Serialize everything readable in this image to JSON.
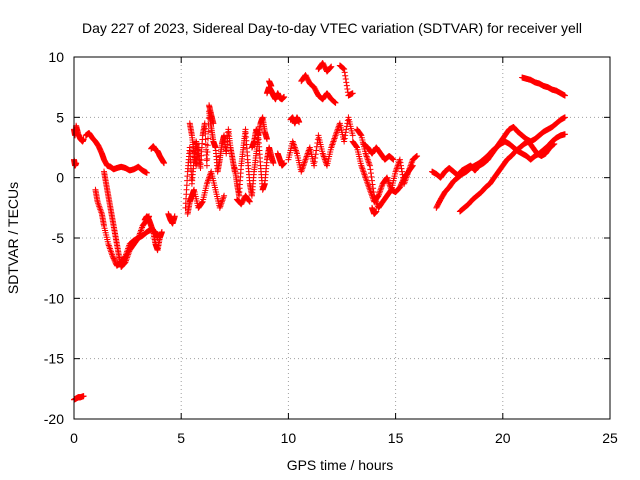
{
  "chart_data": {
    "type": "scatter",
    "title": "Day 227 of 2023, Sidereal Day-to-day VTEC variation (SDTVAR) for receiver yell",
    "xlabel": "GPS time / hours",
    "ylabel": "SDTVAR / TECUs",
    "xlim": [
      0,
      25
    ],
    "ylim": [
      -20,
      10
    ],
    "xticks": [
      0,
      5,
      10,
      15,
      20,
      25
    ],
    "yticks": [
      -20,
      -15,
      -10,
      -5,
      0,
      5,
      10
    ],
    "grid": true,
    "marker": "+",
    "color": "#ff0000",
    "series": [
      {
        "name": "SDTVAR",
        "segments": [
          {
            "x": [
              0.0,
              0.1,
              0.2,
              0.3,
              0.45
            ],
            "y": [
              -18.4,
              -18.3,
              -18.2,
              -18.2,
              -18.1
            ]
          },
          {
            "x": [
              0.0,
              0.05,
              0.1
            ],
            "y": [
              1.5,
              1.0,
              1.2
            ]
          },
          {
            "x": [
              0.0,
              0.05,
              0.1,
              0.2,
              0.3,
              0.4,
              0.45
            ],
            "y": [
              4.0,
              3.5,
              4.3,
              3.6,
              3.2,
              3.0,
              3.2
            ]
          },
          {
            "x": [
              0.55,
              0.7,
              0.85,
              1.0,
              1.15,
              1.3,
              1.4,
              1.55,
              1.7,
              1.85,
              2.0,
              2.2,
              2.4,
              2.6,
              2.8,
              3.0,
              3.2,
              3.4
            ],
            "y": [
              3.5,
              3.7,
              3.3,
              3.0,
              2.6,
              2.0,
              1.5,
              1.0,
              0.9,
              0.7,
              0.8,
              0.9,
              0.8,
              0.6,
              0.7,
              0.9,
              0.6,
              0.4
            ]
          },
          {
            "x": [
              1.0,
              1.1,
              1.3,
              1.4,
              1.6,
              1.8,
              2.0,
              2.2,
              2.4,
              2.6,
              2.8,
              3.0,
              3.2,
              3.4,
              3.6,
              3.8,
              3.9
            ],
            "y": [
              -1.0,
              -2.0,
              -3.0,
              -4.0,
              -5.5,
              -6.5,
              -7.3,
              -7.0,
              -6.5,
              -5.5,
              -5.2,
              -5.0,
              -4.8,
              -4.5,
              -4.3,
              -4.5,
              -5.0
            ]
          },
          {
            "x": [
              1.4,
              1.5,
              1.6,
              1.7,
              1.8,
              1.9,
              2.0,
              2.1,
              2.2,
              2.4,
              2.6,
              2.8,
              3.0,
              3.2,
              3.4,
              3.5
            ],
            "y": [
              0.5,
              -0.5,
              -1.5,
              -2.5,
              -3.5,
              -4.5,
              -5.5,
              -6.5,
              -7.4,
              -7.0,
              -6.0,
              -5.5,
              -5.0,
              -4.0,
              -3.5,
              -3.2
            ]
          },
          {
            "x": [
              3.3,
              3.4,
              3.5,
              3.6,
              3.7,
              3.8,
              3.9,
              4.0,
              4.1
            ],
            "y": [
              -3.5,
              -3.2,
              -3.5,
              -4.0,
              -4.5,
              -5.5,
              -6.0,
              -5.0,
              -4.5
            ]
          },
          {
            "x": [
              3.6,
              3.7,
              3.8,
              3.9,
              4.0,
              4.1,
              4.2
            ],
            "y": [
              2.4,
              2.6,
              2.3,
              2.2,
              1.8,
              1.5,
              1.2
            ]
          },
          {
            "x": [
              4.4,
              4.5,
              4.6,
              4.7
            ],
            "y": [
              -3.0,
              -3.5,
              -3.8,
              -3.2
            ]
          },
          {
            "x": [
              5.2,
              5.3,
              5.4,
              5.5,
              5.6,
              5.7,
              5.8,
              5.9,
              6.0,
              6.1,
              6.2,
              6.3,
              6.4,
              6.5,
              6.6,
              6.7,
              6.8,
              6.9,
              7.0,
              7.1,
              7.2,
              7.3,
              7.4,
              7.5
            ],
            "y": [
              -2.5,
              0.5,
              2.5,
              -0.5,
              1.5,
              3.0,
              2.0,
              0.8,
              3.5,
              4.5,
              1.0,
              5.5,
              4.2,
              3.0,
              2.5,
              0.5,
              1.5,
              2.8,
              3.5,
              2.0,
              4.0,
              2.5,
              1.5,
              0.5
            ]
          },
          {
            "x": [
              5.3,
              5.4,
              5.5,
              5.6,
              5.8,
              6.0,
              6.2,
              6.4,
              6.6,
              6.8,
              7.0
            ],
            "y": [
              -3.0,
              -2.0,
              -1.5,
              -1.0,
              -2.5,
              -2.0,
              -0.5,
              0.5,
              -1.0,
              -2.5,
              -1.5
            ]
          },
          {
            "x": [
              5.4,
              5.5,
              5.6,
              5.7,
              5.8
            ],
            "y": [
              4.5,
              3.5,
              2.0,
              1.0,
              2.5
            ]
          },
          {
            "x": [
              6.3,
              6.4,
              6.5
            ],
            "y": [
              6.0,
              5.2,
              4.5
            ]
          },
          {
            "x": [
              7.5,
              7.6,
              7.7,
              7.8,
              7.9,
              8.0,
              8.1,
              8.2,
              8.3,
              8.4,
              8.5,
              8.6,
              8.7,
              8.8,
              8.9,
              9.0,
              9.1,
              9.2,
              9.3
            ],
            "y": [
              0.8,
              -0.5,
              -1.5,
              1.0,
              2.5,
              4.0,
              1.5,
              -0.5,
              -1.5,
              0.5,
              2.0,
              3.5,
              1.0,
              -1.0,
              -0.5,
              1.5,
              2.5,
              1.8,
              1.2
            ]
          },
          {
            "x": [
              7.6,
              7.8,
              8.0,
              8.2
            ],
            "y": [
              -1.8,
              -2.2,
              -1.5,
              -2.0
            ]
          },
          {
            "x": [
              8.3,
              8.4,
              8.5,
              8.6,
              8.7,
              8.8,
              8.9,
              9.0
            ],
            "y": [
              2.5,
              3.0,
              4.0,
              3.5,
              4.5,
              5.0,
              3.8,
              3.2
            ]
          },
          {
            "x": [
              9.0,
              9.1,
              9.2,
              9.3,
              9.4,
              9.5,
              9.6,
              9.7,
              9.8
            ],
            "y": [
              7.0,
              7.5,
              7.2,
              6.8,
              6.5,
              7.0,
              6.6,
              6.5,
              6.7
            ]
          },
          {
            "x": [
              9.1,
              9.2
            ],
            "y": [
              8.0,
              7.6
            ]
          },
          {
            "x": [
              9.5,
              9.6,
              9.7,
              9.8
            ],
            "y": [
              2.0,
              1.5,
              1.0,
              1.2
            ]
          },
          {
            "x": [
              10.0,
              10.2,
              10.4,
              10.6,
              10.8,
              11.0,
              11.2,
              11.4,
              11.6,
              11.8,
              12.0,
              12.2,
              12.4,
              12.6,
              12.8,
              13.0
            ],
            "y": [
              1.5,
              3.0,
              2.0,
              0.5,
              1.5,
              2.5,
              1.0,
              3.5,
              2.0,
              1.0,
              2.5,
              3.5,
              4.5,
              3.0,
              5.0,
              3.5
            ]
          },
          {
            "x": [
              10.1,
              10.2,
              10.3,
              10.4,
              10.5
            ],
            "y": [
              4.8,
              5.0,
              4.5,
              5.0,
              4.6
            ]
          },
          {
            "x": [
              10.6,
              10.8,
              11.0,
              11.2,
              11.4,
              11.6,
              11.8,
              12.0,
              12.2
            ],
            "y": [
              8.0,
              8.5,
              7.8,
              7.5,
              6.8,
              6.5,
              7.0,
              6.5,
              6.2
            ]
          },
          {
            "x": [
              11.4,
              11.6,
              11.8,
              12.0
            ],
            "y": [
              9.0,
              9.5,
              8.8,
              9.2
            ]
          },
          {
            "x": [
              12.4,
              12.6,
              12.8,
              13.0
            ],
            "y": [
              9.3,
              9.0,
              6.8,
              7.0
            ]
          },
          {
            "x": [
              13.0,
              13.2,
              13.4,
              13.6,
              13.8,
              14.0,
              14.2,
              14.4,
              14.6,
              14.8,
              15.0,
              15.2,
              15.4,
              15.6,
              15.8,
              16.0
            ],
            "y": [
              3.0,
              2.5,
              1.0,
              0.0,
              -1.0,
              -2.0,
              -1.5,
              -0.5,
              0.0,
              -1.0,
              0.5,
              1.5,
              -0.5,
              0.5,
              1.5,
              1.8
            ]
          },
          {
            "x": [
              13.2,
              13.4,
              13.6,
              13.8,
              14.0,
              14.2,
              14.4,
              14.6,
              14.8,
              15.0,
              15.2,
              15.4,
              15.6,
              15.8
            ],
            "y": [
              4.0,
              3.5,
              2.0,
              1.0,
              -1.5,
              -2.5,
              -2.0,
              -1.5,
              -1.0,
              -1.2,
              -0.8,
              0.0,
              0.5,
              1.0
            ]
          },
          {
            "x": [
              13.5,
              13.7,
              13.9,
              14.1,
              14.3,
              14.5,
              14.7,
              14.9
            ],
            "y": [
              2.8,
              2.5,
              2.0,
              2.5,
              2.0,
              1.5,
              1.8,
              1.5
            ]
          },
          {
            "x": [
              13.9,
              14.0,
              14.1
            ],
            "y": [
              -2.5,
              -3.0,
              -2.8
            ]
          },
          {
            "x": [
              16.7,
              16.9,
              17.1,
              17.3,
              17.5,
              17.7,
              17.9,
              18.1,
              18.3,
              18.5,
              18.7,
              18.9,
              19.1,
              19.3,
              19.5,
              19.7,
              19.9,
              20.1,
              20.3,
              20.5,
              20.7,
              20.9,
              21.1,
              21.3,
              21.5,
              21.7,
              21.9,
              22.1,
              22.3,
              22.5,
              22.7,
              22.9
            ],
            "y": [
              0.5,
              0.3,
              0.0,
              0.5,
              0.8,
              0.5,
              0.2,
              0.6,
              0.8,
              1.0,
              0.6,
              1.0,
              1.2,
              1.5,
              2.0,
              2.5,
              3.0,
              3.5,
              4.0,
              4.2,
              3.8,
              3.5,
              3.2,
              3.0,
              3.2,
              3.5,
              3.8,
              4.0,
              4.2,
              4.5,
              4.8,
              5.0
            ]
          },
          {
            "x": [
              16.9,
              17.1,
              17.3,
              17.5,
              17.7,
              17.9,
              18.1,
              18.3,
              18.5,
              18.7,
              18.9,
              19.1,
              19.3,
              19.5,
              19.7,
              19.9,
              20.1,
              20.3,
              20.5,
              20.7,
              20.9,
              21.1,
              21.3,
              21.5,
              21.7,
              21.9,
              22.1,
              22.3,
              22.5,
              22.7,
              22.9
            ],
            "y": [
              -2.5,
              -1.8,
              -1.2,
              -0.8,
              -0.3,
              0.0,
              0.3,
              0.5,
              0.8,
              1.0,
              1.2,
              1.5,
              1.8,
              2.2,
              2.5,
              2.8,
              3.0,
              2.8,
              2.5,
              2.2,
              2.0,
              1.8,
              1.5,
              1.8,
              2.0,
              2.3,
              2.6,
              3.0,
              3.3,
              3.5,
              3.6
            ]
          },
          {
            "x": [
              18.0,
              18.2,
              18.4,
              18.6,
              18.8,
              19.0,
              19.2,
              19.4,
              19.6,
              19.8,
              20.0,
              20.2,
              20.4,
              20.6,
              20.8,
              21.0,
              21.2,
              21.4,
              21.6,
              21.8,
              22.0,
              22.2,
              22.4
            ],
            "y": [
              -2.8,
              -2.5,
              -2.2,
              -1.8,
              -1.5,
              -1.2,
              -0.8,
              -0.5,
              0.0,
              0.5,
              1.0,
              1.5,
              1.8,
              2.2,
              2.5,
              2.8,
              3.0,
              2.5,
              2.0,
              1.8,
              2.0,
              2.5,
              2.8
            ]
          },
          {
            "x": [
              20.9,
              21.1,
              21.3,
              21.5,
              21.7,
              21.9,
              22.1,
              22.3,
              22.5,
              22.7,
              22.9
            ],
            "y": [
              8.3,
              8.2,
              8.1,
              7.9,
              7.8,
              7.6,
              7.5,
              7.3,
              7.2,
              7.0,
              6.8
            ]
          }
        ]
      }
    ]
  }
}
